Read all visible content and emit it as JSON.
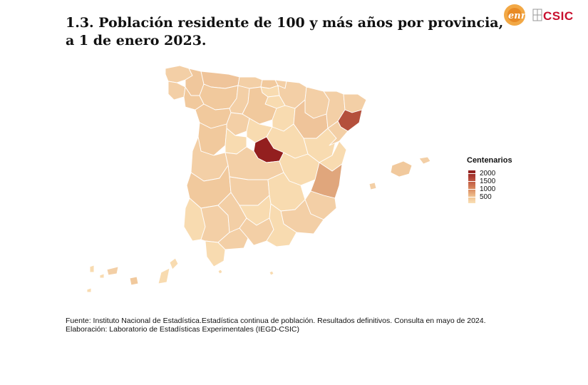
{
  "title_line1": "1.3. Población residente de 100 y más años por provincia,",
  "title_line2": "a 1 de enero 2023.",
  "logos": {
    "left_logo_text": "enr",
    "right_logo_text": "CSIC"
  },
  "legend": {
    "title": "Centenarios",
    "ticks": [
      "2000",
      "1500",
      "1000",
      "500"
    ],
    "color_low": "#fae1b9",
    "color_mid": "#ecb27c",
    "color_high": "#8b1a1a"
  },
  "footer": {
    "source": "Fuente: Instituto Nacional de Estadística.Estadística continua de población. Resultados definitivos. Consulta en mayo de 2024.",
    "credit": "Elaboración: Laboratorio de Estadísticas Experimentales (IEGD-CSIC)"
  },
  "colors": {
    "madrid": "#931f1f",
    "barcelona": "#b4503c",
    "valencia": "#e0a67c",
    "asturias": "#efc49a",
    "medium": "#f1c99d",
    "light": "#f8dbb0",
    "border": "#ffffff"
  }
}
